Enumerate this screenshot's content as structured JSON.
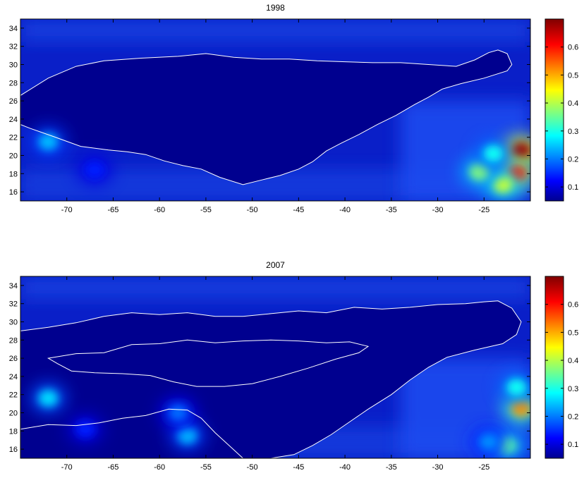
{
  "chart_data": [
    {
      "type": "heatmap",
      "title": "1998",
      "xlim": [
        -75,
        -20
      ],
      "ylim": [
        15,
        35
      ],
      "xticks": [
        -70,
        -65,
        -60,
        -55,
        -50,
        -45,
        -40,
        -35,
        -30,
        -25
      ],
      "yticks": [
        16,
        18,
        20,
        22,
        24,
        26,
        28,
        30,
        32,
        34
      ],
      "colorbar": {
        "min": 0.05,
        "max": 0.7,
        "ticks": [
          0.1,
          0.2,
          0.3,
          0.4,
          0.5,
          0.6
        ],
        "colormap": "jet"
      },
      "contour_color": "#ffffff",
      "contour_outline": [
        [
          -75,
          26.6
        ],
        [
          -72,
          28.5
        ],
        [
          -69,
          29.8
        ],
        [
          -66,
          30.4
        ],
        [
          -62,
          30.7
        ],
        [
          -58,
          30.9
        ],
        [
          -55,
          31.2
        ],
        [
          -52,
          30.8
        ],
        [
          -49,
          30.6
        ],
        [
          -46,
          30.6
        ],
        [
          -43,
          30.4
        ],
        [
          -40,
          30.3
        ],
        [
          -37,
          30.2
        ],
        [
          -34,
          30.2
        ],
        [
          -31,
          30.0
        ],
        [
          -28,
          29.8
        ],
        [
          -26,
          30.5
        ],
        [
          -24.5,
          31.3
        ],
        [
          -23.5,
          31.6
        ],
        [
          -22.5,
          31.2
        ],
        [
          -22,
          30.0
        ],
        [
          -22.5,
          29.3
        ],
        [
          -25,
          28.5
        ],
        [
          -27.5,
          27.9
        ],
        [
          -29.5,
          27.3
        ],
        [
          -31,
          26.4
        ],
        [
          -32.5,
          25.6
        ],
        [
          -34.5,
          24.4
        ],
        [
          -36.5,
          23.4
        ],
        [
          -38.5,
          22.3
        ],
        [
          -40.5,
          21.3
        ],
        [
          -42,
          20.5
        ],
        [
          -43.5,
          19.3
        ],
        [
          -45,
          18.5
        ],
        [
          -47,
          17.8
        ],
        [
          -49,
          17.3
        ],
        [
          -51,
          16.8
        ],
        [
          -53.5,
          17.6
        ],
        [
          -55.5,
          18.5
        ],
        [
          -57.5,
          18.9
        ],
        [
          -59.5,
          19.4
        ],
        [
          -61.5,
          20.1
        ],
        [
          -63.5,
          20.4
        ],
        [
          -65.5,
          20.6
        ],
        [
          -68.5,
          21.0
        ],
        [
          -71.5,
          22.1
        ],
        [
          -74,
          23.0
        ],
        [
          -75,
          23.4
        ]
      ],
      "hotspots": [
        {
          "lon": -21,
          "lat": 20.5,
          "value": 0.68
        },
        {
          "lon": -21.5,
          "lat": 18.0,
          "value": 0.6
        },
        {
          "lon": -23,
          "lat": 16.8,
          "value": 0.42
        },
        {
          "lon": -25.5,
          "lat": 18.2,
          "value": 0.38
        },
        {
          "lon": -24,
          "lat": 20.2,
          "value": 0.3
        },
        {
          "lon": -72,
          "lat": 21.5,
          "value": 0.25
        },
        {
          "lon": -67,
          "lat": 18.4,
          "value": 0.15
        }
      ]
    },
    {
      "type": "heatmap",
      "title": "2007",
      "xlim": [
        -75,
        -20
      ],
      "ylim": [
        15,
        35
      ],
      "xticks": [
        -70,
        -65,
        -60,
        -55,
        -50,
        -45,
        -40,
        -35,
        -30,
        -25
      ],
      "yticks": [
        16,
        18,
        20,
        22,
        24,
        26,
        28,
        30,
        32,
        34
      ],
      "colorbar": {
        "min": 0.05,
        "max": 0.7,
        "ticks": [
          0.1,
          0.2,
          0.3,
          0.4,
          0.5,
          0.6
        ],
        "colormap": "jet"
      },
      "contour_color": "#ffffff",
      "contour_outline": [
        [
          -75,
          29.0
        ],
        [
          -72,
          29.4
        ],
        [
          -69,
          29.9
        ],
        [
          -66,
          30.6
        ],
        [
          -63,
          31.0
        ],
        [
          -60,
          30.8
        ],
        [
          -57,
          31.0
        ],
        [
          -54,
          30.6
        ],
        [
          -51,
          30.6
        ],
        [
          -48,
          30.9
        ],
        [
          -45,
          31.2
        ],
        [
          -42,
          31.0
        ],
        [
          -39,
          31.6
        ],
        [
          -36,
          31.4
        ],
        [
          -33,
          31.6
        ],
        [
          -30,
          31.9
        ],
        [
          -27,
          32.0
        ],
        [
          -25,
          32.2
        ],
        [
          -23.5,
          32.3
        ],
        [
          -22,
          31.5
        ],
        [
          -21,
          30.0
        ],
        [
          -21.5,
          28.6
        ],
        [
          -23,
          27.6
        ],
        [
          -26,
          26.9
        ],
        [
          -29,
          26.1
        ],
        [
          -31,
          25.0
        ],
        [
          -33,
          23.6
        ],
        [
          -35,
          22.0
        ],
        [
          -37.5,
          20.4
        ],
        [
          -39.5,
          19.0
        ],
        [
          -41.5,
          17.6
        ],
        [
          -43.5,
          16.4
        ],
        [
          -45.5,
          15.4
        ],
        [
          -48,
          15.0
        ]
      ],
      "contour_left": [
        [
          -75,
          18.2
        ],
        [
          -72,
          18.7
        ],
        [
          -69,
          18.6
        ],
        [
          -66.5,
          18.9
        ],
        [
          -64,
          19.4
        ],
        [
          -61.5,
          19.7
        ],
        [
          -59,
          20.4
        ],
        [
          -57,
          20.3
        ],
        [
          -55.5,
          19.4
        ],
        [
          -54,
          17.8
        ],
        [
          -52.5,
          16.4
        ],
        [
          -51,
          15.0
        ]
      ],
      "contour_inner": [
        [
          -72,
          26.0
        ],
        [
          -69,
          26.5
        ],
        [
          -66,
          26.6
        ],
        [
          -63,
          27.5
        ],
        [
          -60,
          27.6
        ],
        [
          -57,
          28.0
        ],
        [
          -54,
          27.7
        ],
        [
          -51,
          27.9
        ],
        [
          -48,
          28.0
        ],
        [
          -45,
          27.9
        ],
        [
          -42,
          27.7
        ],
        [
          -39.5,
          27.8
        ],
        [
          -37.5,
          27.3
        ],
        [
          -38.5,
          26.6
        ],
        [
          -41,
          25.9
        ],
        [
          -44,
          24.9
        ],
        [
          -47,
          24.0
        ],
        [
          -50,
          23.2
        ],
        [
          -53,
          22.9
        ],
        [
          -56,
          22.9
        ],
        [
          -58.5,
          23.4
        ],
        [
          -61,
          24.1
        ],
        [
          -64,
          24.3
        ],
        [
          -67,
          24.4
        ],
        [
          -69.5,
          24.6
        ],
        [
          -71,
          25.4
        ],
        [
          -72,
          26.0
        ]
      ],
      "hotspots": [
        {
          "lon": -21,
          "lat": 20.5,
          "value": 0.52
        },
        {
          "lon": -21.5,
          "lat": 22.8,
          "value": 0.3
        },
        {
          "lon": -22.5,
          "lat": 16.4,
          "value": 0.35
        },
        {
          "lon": -24.5,
          "lat": 16.8,
          "value": 0.22
        },
        {
          "lon": -57,
          "lat": 17.5,
          "value": 0.25
        },
        {
          "lon": -58,
          "lat": 20.0,
          "value": 0.2
        },
        {
          "lon": -72,
          "lat": 21.6,
          "value": 0.27
        },
        {
          "lon": -68,
          "lat": 18.2,
          "value": 0.15
        }
      ]
    }
  ]
}
